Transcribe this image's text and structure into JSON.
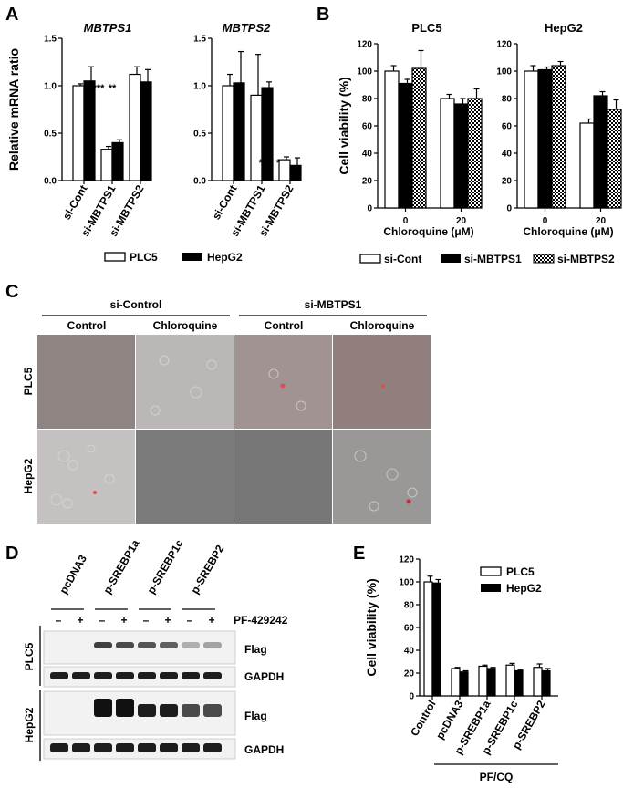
{
  "panel_letters": {
    "A": "A",
    "B": "B",
    "C": "C",
    "D": "D",
    "E": "E"
  },
  "colors": {
    "plc5": "#ffffff",
    "hepg2": "#000000",
    "stroke": "#000000",
    "micro_pink": "#9a8e8e",
    "micro_gray": "#7c7c7c",
    "micro_light": "#b9b6b6"
  },
  "panelC": {
    "groups": [
      "si-Control",
      "si-MBTPS1"
    ],
    "treatments": [
      "Control",
      "Chloroquine",
      "Control",
      "Chloroquine"
    ],
    "rows": [
      "PLC5",
      "HepG2"
    ]
  },
  "panelD": {
    "constructs": [
      "pcDNA3",
      "p-SREBP1a",
      "p-SREBP1c",
      "p-SREBP2"
    ],
    "signs": [
      "–",
      "+",
      "–",
      "+",
      "–",
      "+",
      "–",
      "+"
    ],
    "treatment": "PF-429242",
    "rows": [
      "PLC5",
      "HepG2"
    ],
    "blot_labels": [
      "Flag",
      "GAPDH",
      "Flag",
      "GAPDH"
    ],
    "flag_plc5": [
      0,
      0,
      0.8,
      0.75,
      0.7,
      0.65,
      0.3,
      0.35
    ],
    "flag_hepg2": [
      0,
      0,
      1,
      1,
      0.95,
      0.95,
      0.75,
      0.75
    ]
  },
  "chart_data": [
    {
      "type": "bar",
      "panel": "A",
      "title": "MBTPS1",
      "ylabel": "Relative mRNA ratio",
      "ylim": [
        0,
        1.5
      ],
      "yticks": [
        "0.0",
        "0.5",
        "1.0",
        "1.5"
      ],
      "categories": [
        "si-Cont",
        "si-MBTPS1",
        "si-MBTPS2"
      ],
      "series": [
        {
          "name": "PLC5",
          "values": [
            1.0,
            0.33,
            1.12
          ],
          "errors": [
            0.02,
            0.03,
            0.08
          ]
        },
        {
          "name": "HepG2",
          "values": [
            1.05,
            0.4,
            1.04
          ],
          "errors": [
            0.15,
            0.03,
            0.13
          ]
        }
      ],
      "annotations": [
        "***",
        "**"
      ]
    },
    {
      "type": "bar",
      "panel": "A",
      "title": "MBTPS2",
      "ylim": [
        0,
        1.5
      ],
      "yticks": [
        "0.0",
        "0.5",
        "1.0",
        "1.5"
      ],
      "categories": [
        "si-Cont",
        "si-MBTPS1",
        "si-MBTPS2"
      ],
      "series": [
        {
          "name": "PLC5",
          "values": [
            1.0,
            0.9,
            0.22
          ],
          "errors": [
            0.12,
            0.43,
            0.03
          ]
        },
        {
          "name": "HepG2",
          "values": [
            1.03,
            0.98,
            0.16
          ],
          "errors": [
            0.33,
            0.06,
            0.08
          ]
        }
      ],
      "annotations": [
        "***",
        "*"
      ]
    },
    {
      "type": "bar",
      "panel": "B",
      "title": "PLC5",
      "ylabel": "Cell viability (%)",
      "ylim": [
        0,
        120
      ],
      "yticks": [
        "0",
        "20",
        "40",
        "60",
        "80",
        "100",
        "120"
      ],
      "xlabel": "Chloroquine (μM)",
      "categories": [
        "0",
        "20"
      ],
      "series": [
        {
          "name": "si-Cont",
          "values": [
            100,
            80
          ],
          "errors": [
            4,
            3
          ]
        },
        {
          "name": "si-MBTPS1",
          "values": [
            91,
            76
          ],
          "errors": [
            3,
            4
          ]
        },
        {
          "name": "si-MBTPS2",
          "values": [
            102,
            80
          ],
          "errors": [
            13,
            7
          ]
        }
      ]
    },
    {
      "type": "bar",
      "panel": "B",
      "title": "HepG2",
      "ylim": [
        0,
        120
      ],
      "yticks": [
        "0",
        "20",
        "40",
        "60",
        "80",
        "100",
        "120"
      ],
      "xlabel": "Chloroquine (μM)",
      "categories": [
        "0",
        "20"
      ],
      "series": [
        {
          "name": "si-Cont",
          "values": [
            100,
            62
          ],
          "errors": [
            4,
            3
          ]
        },
        {
          "name": "si-MBTPS1",
          "values": [
            101,
            82
          ],
          "errors": [
            2,
            3
          ]
        },
        {
          "name": "si-MBTPS2",
          "values": [
            104,
            72
          ],
          "errors": [
            3,
            7
          ]
        }
      ]
    },
    {
      "type": "bar",
      "panel": "E",
      "ylabel": "Cell viability (%)",
      "ylim": [
        0,
        120
      ],
      "yticks": [
        "0",
        "20",
        "40",
        "60",
        "80",
        "100",
        "120"
      ],
      "categories": [
        "Control",
        "pcDNA3",
        "p-SREBP1a",
        "p-SREBP1c",
        "p-SREBP2"
      ],
      "group_label": "PF/CQ",
      "series": [
        {
          "name": "PLC5",
          "values": [
            100,
            24,
            26,
            27,
            25
          ],
          "errors": [
            5,
            1,
            1,
            1.5,
            3
          ]
        },
        {
          "name": "HepG2",
          "values": [
            99,
            21,
            24,
            22,
            22
          ],
          "errors": [
            3,
            1,
            1,
            1,
            2
          ]
        }
      ]
    }
  ],
  "legendA": [
    "PLC5",
    "HepG2"
  ],
  "legendB": [
    "si-Cont",
    "si-MBTPS1",
    "si-MBTPS2"
  ],
  "legendE": [
    "PLC5",
    "HepG2"
  ]
}
